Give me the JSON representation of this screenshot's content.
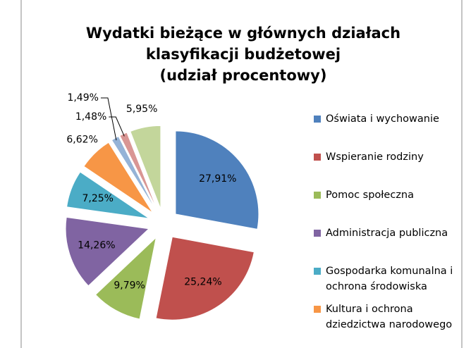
{
  "chart_data": {
    "type": "pie",
    "title": [
      "Wydatki bieżące w głównych działach",
      "klasyfikacji budżetowej",
      "(udział procentowy)"
    ],
    "categories": [
      "Oświata i wychowanie",
      "Wspieranie rodziny",
      "Pomoc społeczna",
      "Administracja publiczna",
      "Gospodarka komunalna i ochrona środowiska",
      "Kultura i ochrona dziedzictwa narodowego",
      null,
      null,
      null
    ],
    "values": [
      27.91,
      25.24,
      9.79,
      14.26,
      7.25,
      6.62,
      1.49,
      1.48,
      5.95
    ],
    "value_labels": [
      "27,91%",
      "25,24%",
      "9,79%",
      "14,26%",
      "7,25%",
      "6,62%",
      "1,49%",
      "1,48%",
      "5,95%"
    ],
    "colors": [
      "#4f81bd",
      "#c0504d",
      "#9bbb59",
      "#8064a2",
      "#4bacc6",
      "#f79646",
      "#95b3d7",
      "#d99694",
      "#c3d69b"
    ]
  }
}
